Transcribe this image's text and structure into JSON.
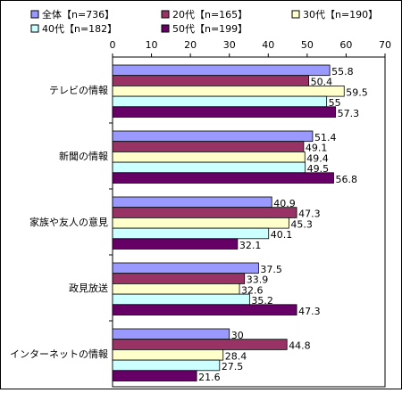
{
  "chart_data": {
    "type": "bar",
    "orientation": "horizontal",
    "categories": [
      "テレビの情報",
      "新聞の情報",
      "家族や友人の意見",
      "政見放送",
      "インターネットの情報"
    ],
    "series": [
      {
        "name": "全体【n=736】",
        "color": "#9999ff",
        "values": [
          55.8,
          51.4,
          40.9,
          37.5,
          30.0
        ]
      },
      {
        "name": "20代【n=165】",
        "color": "#993366",
        "values": [
          50.4,
          49.1,
          47.3,
          33.9,
          44.8
        ]
      },
      {
        "name": "30代【n=190】",
        "color": "#ffffcc",
        "values": [
          59.5,
          49.4,
          45.3,
          32.6,
          28.4
        ]
      },
      {
        "name": "40代【n=182】",
        "color": "#ccffff",
        "values": [
          55.0,
          49.5,
          40.1,
          35.2,
          27.5
        ]
      },
      {
        "name": "50代【n=199】",
        "color": "#660066",
        "values": [
          57.3,
          56.8,
          32.1,
          47.3,
          21.6
        ]
      }
    ],
    "xlim": [
      0,
      70
    ],
    "ticks": [
      0,
      10,
      20,
      30,
      40,
      50,
      60,
      70
    ],
    "axis_position": "top",
    "legend_position": "top",
    "grid": false,
    "title": "",
    "xlabel": "",
    "ylabel": ""
  }
}
